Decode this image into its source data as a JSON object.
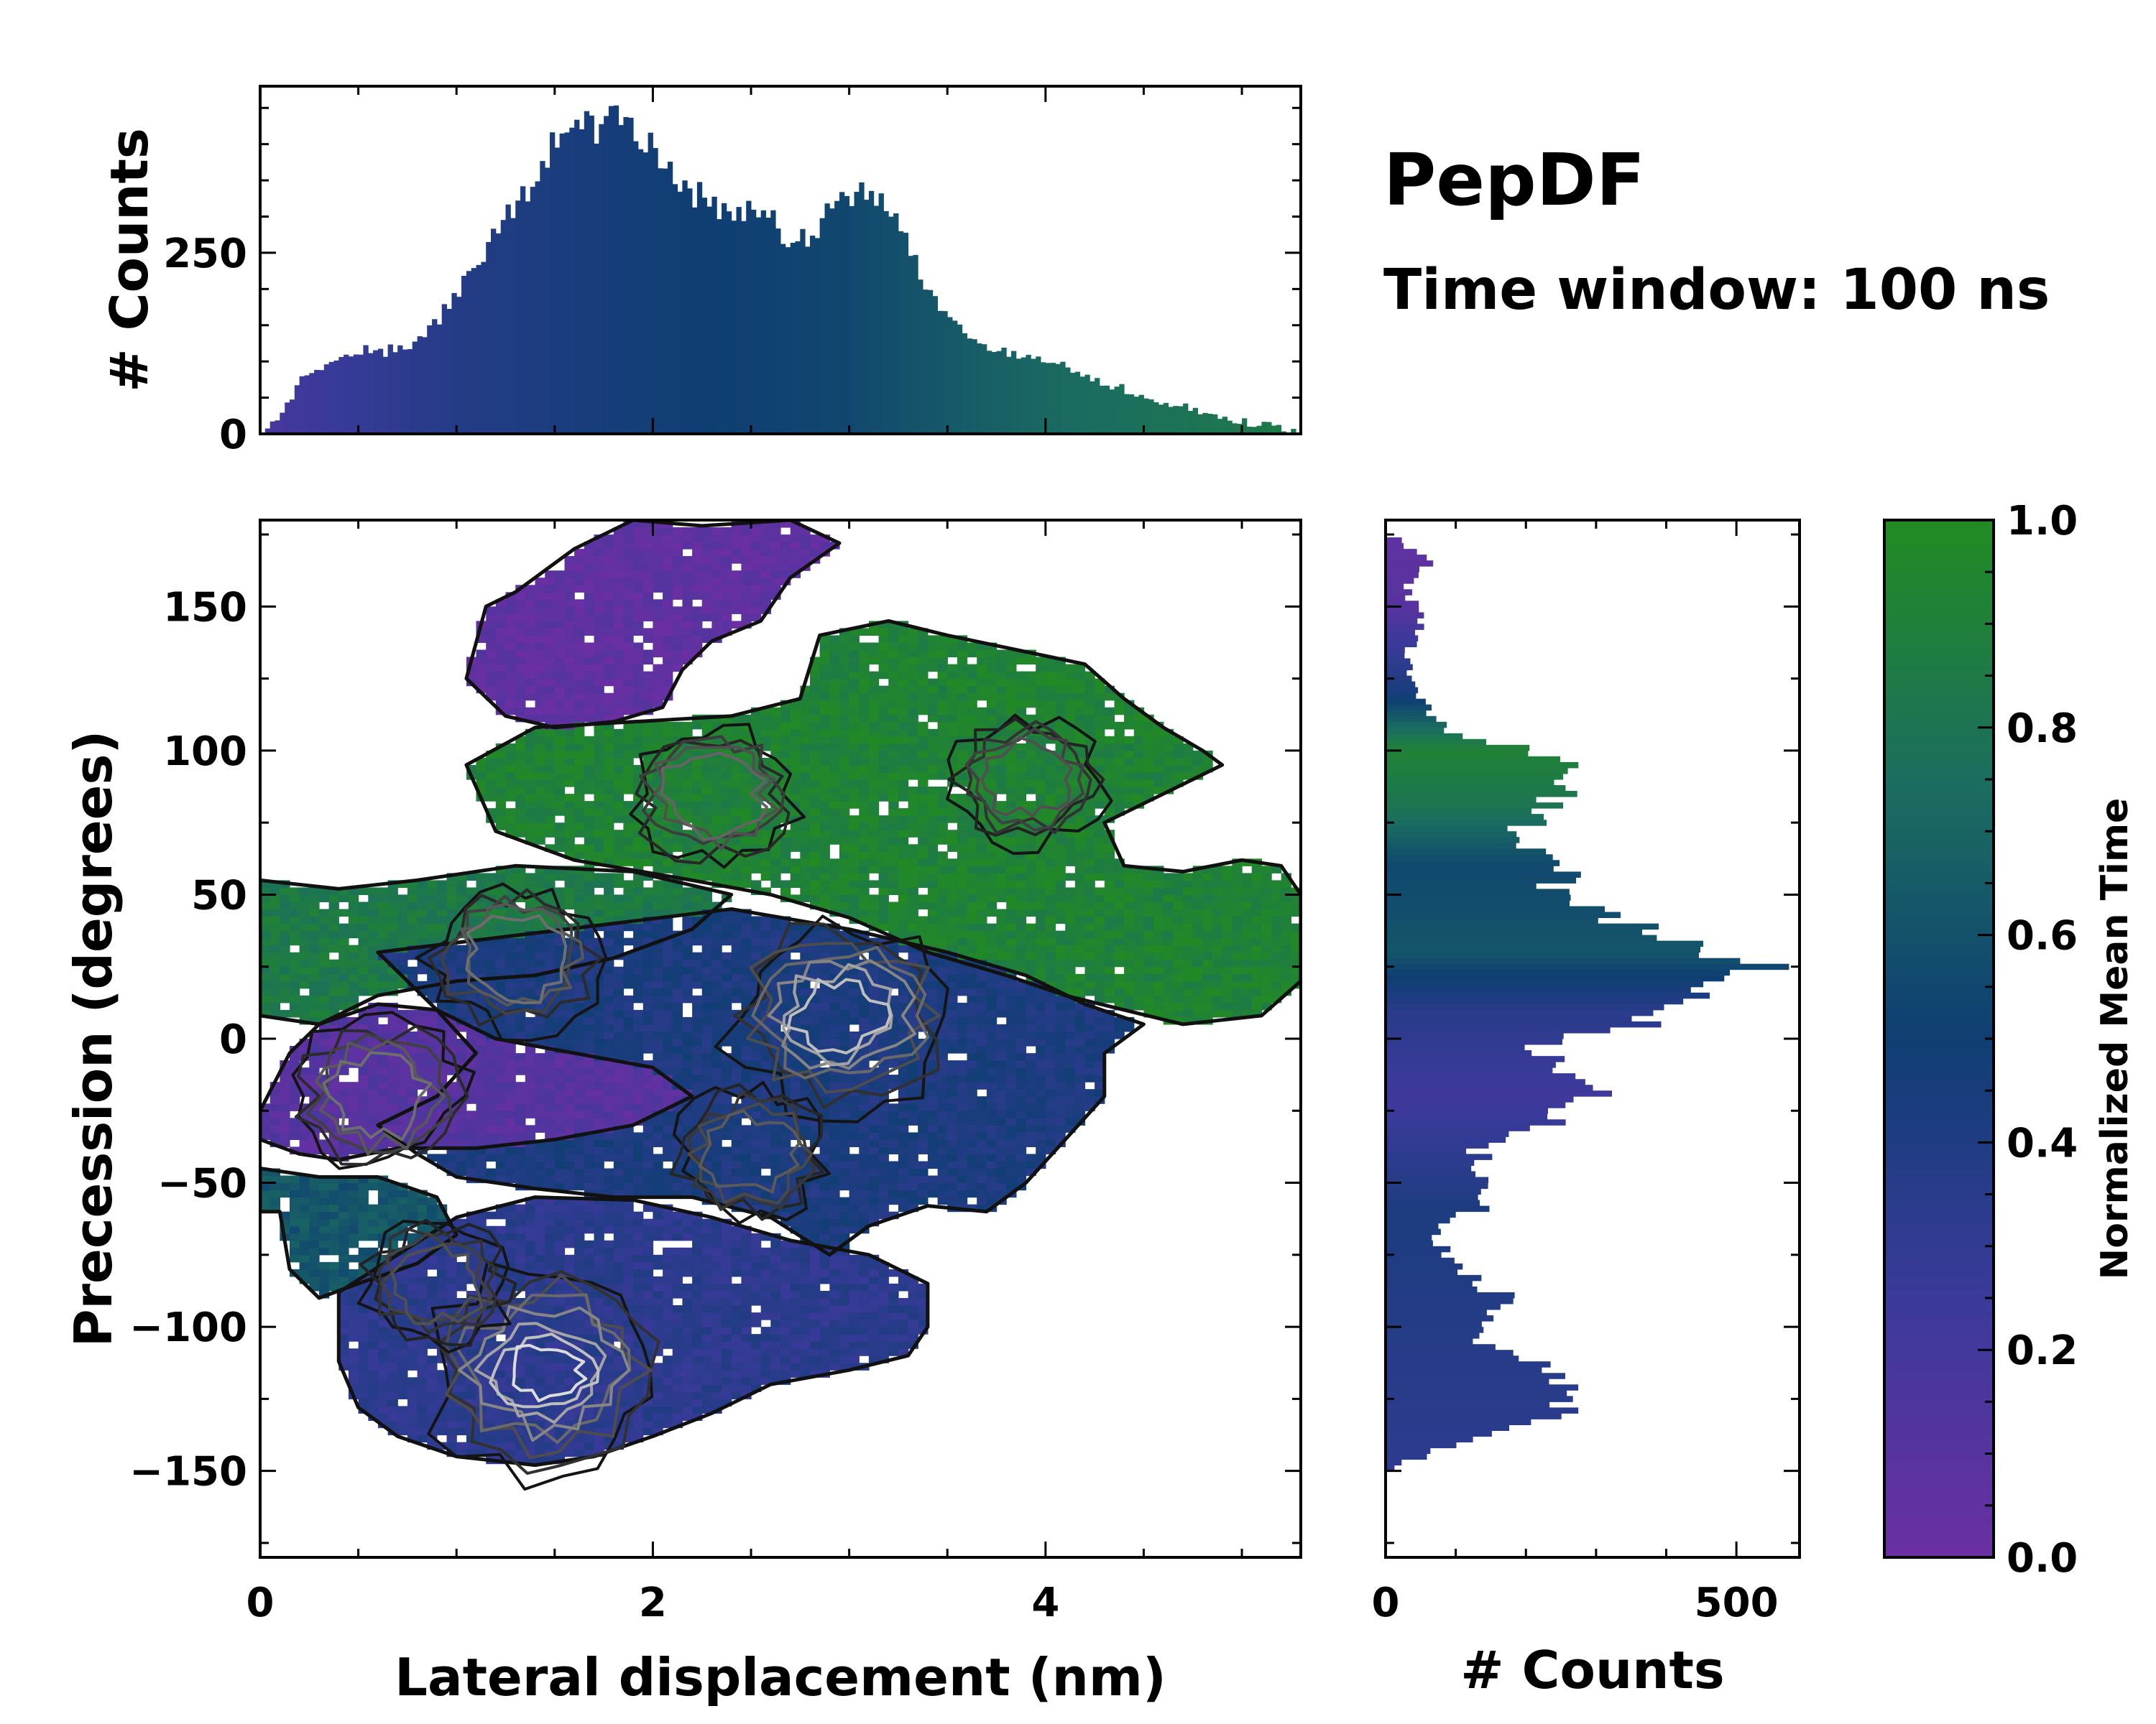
{
  "title": "PepDF",
  "subtitle": "Time window: 100 ns",
  "colors": {
    "colormap": [
      "#6a2fa3",
      "#3a3a9a",
      "#0f3e73",
      "#1b6e5f",
      "#228b22"
    ],
    "contour_dark": "#111111",
    "contour_light": "#bbbbbb"
  },
  "chart_data": [
    {
      "id": "main-2d-histogram",
      "type": "heatmap",
      "description_value": "2D histogram colored by normalized mean time with density contours",
      "xlabel": "Lateral displacement (nm)",
      "ylabel": "Precession (degrees)",
      "xlim": [
        0,
        5.3
      ],
      "ylim": [
        -180,
        180
      ],
      "xticks": [
        0,
        2,
        4
      ],
      "xtick_labels": [
        "0",
        "2",
        "4"
      ],
      "yticks": [
        -150,
        -100,
        -50,
        0,
        50,
        100,
        150
      ],
      "ytick_labels": [
        "−150",
        "−100",
        "−50",
        "0",
        "50",
        "100",
        "150"
      ],
      "regions": [
        {
          "name": "upper-purple",
          "color_value": 0.05,
          "polygon": [
            [
              1.05,
              125
            ],
            [
              1.15,
              150
            ],
            [
              1.3,
              155
            ],
            [
              1.6,
              170
            ],
            [
              1.9,
              180
            ],
            [
              2.25,
              178
            ],
            [
              2.7,
              180
            ],
            [
              2.95,
              172
            ],
            [
              2.7,
              160
            ],
            [
              2.55,
              145
            ],
            [
              2.3,
              138
            ],
            [
              2.15,
              128
            ],
            [
              2.05,
              115
            ],
            [
              1.8,
              110
            ],
            [
              1.5,
              108
            ],
            [
              1.25,
              112
            ]
          ]
        },
        {
          "name": "upper-right-green",
          "color_value": 0.92,
          "polygon": [
            [
              1.05,
              95
            ],
            [
              1.4,
              108
            ],
            [
              1.9,
              110
            ],
            [
              2.4,
              112
            ],
            [
              2.75,
              118
            ],
            [
              2.85,
              140
            ],
            [
              3.2,
              145
            ],
            [
              3.5,
              140
            ],
            [
              3.85,
              135
            ],
            [
              4.2,
              130
            ],
            [
              4.4,
              118
            ],
            [
              4.6,
              108
            ],
            [
              4.8,
              100
            ],
            [
              4.9,
              95
            ],
            [
              4.6,
              85
            ],
            [
              4.3,
              75
            ],
            [
              4.4,
              60
            ],
            [
              4.7,
              58
            ],
            [
              5.0,
              62
            ],
            [
              5.2,
              60
            ],
            [
              5.3,
              50
            ],
            [
              5.3,
              20
            ],
            [
              5.1,
              8
            ],
            [
              4.7,
              5
            ],
            [
              4.4,
              10
            ],
            [
              4.1,
              15
            ],
            [
              3.8,
              22
            ],
            [
              3.4,
              30
            ],
            [
              3.0,
              42
            ],
            [
              2.6,
              50
            ],
            [
              2.2,
              55
            ],
            [
              1.6,
              62
            ],
            [
              1.2,
              72
            ]
          ]
        },
        {
          "name": "left-green-band",
          "color_value": 0.85,
          "polygon": [
            [
              0,
              55
            ],
            [
              0.4,
              52
            ],
            [
              0.8,
              55
            ],
            [
              1.3,
              60
            ],
            [
              1.9,
              58
            ],
            [
              2.4,
              50
            ],
            [
              2.2,
              38
            ],
            [
              1.8,
              28
            ],
            [
              1.4,
              22
            ],
            [
              1.0,
              20
            ],
            [
              0.6,
              15
            ],
            [
              0.3,
              5
            ],
            [
              0,
              8
            ]
          ]
        },
        {
          "name": "center-blue",
          "color_value": 0.42,
          "polygon": [
            [
              0.6,
              30
            ],
            [
              1.2,
              35
            ],
            [
              1.8,
              40
            ],
            [
              2.4,
              45
            ],
            [
              3.0,
              38
            ],
            [
              3.5,
              30
            ],
            [
              3.9,
              22
            ],
            [
              4.2,
              12
            ],
            [
              4.5,
              5
            ],
            [
              4.3,
              -5
            ],
            [
              4.3,
              -20
            ],
            [
              4.1,
              -35
            ],
            [
              3.9,
              -50
            ],
            [
              3.7,
              -60
            ],
            [
              3.4,
              -58
            ],
            [
              3.1,
              -65
            ],
            [
              2.9,
              -75
            ],
            [
              2.6,
              -62
            ],
            [
              2.2,
              -55
            ],
            [
              1.8,
              -55
            ],
            [
              1.4,
              -52
            ],
            [
              1.0,
              -48
            ],
            [
              0.8,
              -40
            ],
            [
              0.6,
              -30
            ],
            [
              0.9,
              -20
            ],
            [
              1.1,
              -5
            ],
            [
              0.9,
              10
            ]
          ]
        },
        {
          "name": "left-purple",
          "color_value": 0.1,
          "polygon": [
            [
              0,
              -25
            ],
            [
              0.15,
              -5
            ],
            [
              0.3,
              5
            ],
            [
              0.6,
              12
            ],
            [
              0.9,
              10
            ],
            [
              1.2,
              0
            ],
            [
              1.6,
              -5
            ],
            [
              2.0,
              -10
            ],
            [
              2.2,
              -20
            ],
            [
              1.9,
              -30
            ],
            [
              1.5,
              -35
            ],
            [
              1.1,
              -38
            ],
            [
              0.7,
              -38
            ],
            [
              0.4,
              -42
            ],
            [
              0.2,
              -40
            ],
            [
              0,
              -35
            ]
          ]
        },
        {
          "name": "left-teal",
          "color_value": 0.62,
          "polygon": [
            [
              0,
              -45
            ],
            [
              0.3,
              -48
            ],
            [
              0.6,
              -48
            ],
            [
              0.9,
              -55
            ],
            [
              1.0,
              -68
            ],
            [
              0.8,
              -78
            ],
            [
              0.5,
              -85
            ],
            [
              0.3,
              -90
            ],
            [
              0.15,
              -80
            ],
            [
              0.1,
              -60
            ],
            [
              0,
              -60
            ]
          ]
        },
        {
          "name": "lower-blue",
          "color_value": 0.33,
          "polygon": [
            [
              0.4,
              -88
            ],
            [
              0.7,
              -75
            ],
            [
              1.0,
              -62
            ],
            [
              1.4,
              -55
            ],
            [
              1.9,
              -56
            ],
            [
              2.3,
              -62
            ],
            [
              2.7,
              -70
            ],
            [
              3.1,
              -75
            ],
            [
              3.4,
              -85
            ],
            [
              3.4,
              -100
            ],
            [
              3.3,
              -110
            ],
            [
              3.0,
              -115
            ],
            [
              2.6,
              -120
            ],
            [
              2.3,
              -130
            ],
            [
              2.0,
              -138
            ],
            [
              1.7,
              -145
            ],
            [
              1.4,
              -148
            ],
            [
              1.0,
              -145
            ],
            [
              0.7,
              -138
            ],
            [
              0.5,
              -128
            ],
            [
              0.4,
              -112
            ]
          ]
        }
      ],
      "density_peaks": [
        {
          "x": 1.45,
          "y": -115,
          "strength": 1.0
        },
        {
          "x": 2.95,
          "y": 8,
          "strength": 0.85
        },
        {
          "x": 0.6,
          "y": -20,
          "strength": 0.45
        },
        {
          "x": 1.3,
          "y": 28,
          "strength": 0.45
        },
        {
          "x": 2.3,
          "y": 85,
          "strength": 0.4
        },
        {
          "x": 3.9,
          "y": 90,
          "strength": 0.3
        },
        {
          "x": 2.5,
          "y": -40,
          "strength": 0.35
        },
        {
          "x": 0.9,
          "y": -85,
          "strength": 0.3
        }
      ]
    },
    {
      "id": "top-marginal-histogram",
      "type": "bar",
      "orientation": "vertical",
      "ylabel": "# Counts",
      "xlim": [
        0,
        5.3
      ],
      "ylim": [
        0,
        480
      ],
      "yticks": [
        0,
        250
      ],
      "ytick_labels": [
        "0",
        "250"
      ],
      "profile_x": [
        0.0,
        0.1,
        0.2,
        0.35,
        0.5,
        0.7,
        0.85,
        1.0,
        1.2,
        1.4,
        1.55,
        1.7,
        1.85,
        2.0,
        2.2,
        2.4,
        2.6,
        2.75,
        2.9,
        3.05,
        3.2,
        3.35,
        3.5,
        3.7,
        3.9,
        4.2,
        4.5,
        4.8,
        5.0,
        5.2,
        5.3
      ],
      "profile_y": [
        0,
        25,
        70,
        100,
        110,
        115,
        140,
        190,
        280,
        350,
        420,
        430,
        440,
        390,
        330,
        310,
        300,
        260,
        310,
        340,
        320,
        220,
        170,
        120,
        110,
        80,
        50,
        30,
        18,
        8,
        0
      ],
      "color_profile_x": [
        0,
        1.0,
        2.0,
        3.0,
        4.0,
        5.3
      ],
      "color_profile_v": [
        0.18,
        0.38,
        0.48,
        0.55,
        0.72,
        0.85
      ]
    },
    {
      "id": "right-marginal-histogram",
      "type": "bar",
      "orientation": "horizontal",
      "xlabel": "# Counts",
      "xlim": [
        0,
        590
      ],
      "ylim": [
        -180,
        180
      ],
      "xticks": [
        0,
        500
      ],
      "xtick_labels": [
        "0",
        "500"
      ],
      "profile_y": [
        -150,
        -142,
        -130,
        -120,
        -112,
        -105,
        -98,
        -90,
        -82,
        -76,
        -68,
        -58,
        -48,
        -38,
        -30,
        -20,
        -10,
        -4,
        2,
        10,
        18,
        26,
        30,
        36,
        44,
        52,
        60,
        68,
        78,
        86,
        92,
        98,
        108,
        118,
        126,
        134,
        142,
        150,
        158,
        166,
        174
      ],
      "profile_x": [
        0,
        80,
        250,
        250,
        220,
        130,
        150,
        180,
        120,
        90,
        70,
        140,
        150,
        130,
        230,
        290,
        260,
        210,
        300,
        440,
        470,
        520,
        500,
        410,
        300,
        230,
        270,
        180,
        210,
        260,
        280,
        230,
        80,
        50,
        40,
        30,
        60,
        40,
        30,
        60,
        10
      ],
      "color_profile_y": [
        -150,
        -60,
        -20,
        10,
        30,
        60,
        80,
        100,
        120,
        150,
        175
      ],
      "color_profile_v": [
        0.32,
        0.42,
        0.22,
        0.35,
        0.62,
        0.55,
        0.8,
        0.92,
        0.45,
        0.1,
        0.05
      ]
    },
    {
      "id": "colorbar",
      "type": "colorbar",
      "label": "Normalized Mean Time",
      "range": [
        0,
        1
      ],
      "ticks": [
        0,
        0.2,
        0.4,
        0.6,
        0.8,
        1.0
      ],
      "tick_labels": [
        "0.0",
        "0.2",
        "0.4",
        "0.6",
        "0.8",
        "1.0"
      ]
    }
  ]
}
